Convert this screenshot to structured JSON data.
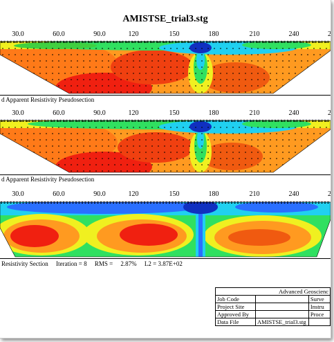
{
  "title": "AMISTSE_trial3.stg",
  "axis_ticks": [
    "30.0",
    "60.0",
    "90.0",
    "120",
    "150",
    "180",
    "210",
    "240",
    "27"
  ],
  "captions": {
    "measured": "d Apparent Resistivity Pseudosection",
    "calculated": "d Apparent Resistivity Pseudosection",
    "inverted": "Resistivity Section"
  },
  "stats": {
    "iteration": "Iteration = 8",
    "rms_label": "RMS =",
    "rms_value": "2.87%",
    "l2": "L2 =  3.87E+02"
  },
  "info_box": {
    "company": "Advanced Geoscienc",
    "rows": [
      {
        "label": "Job Code",
        "value": "",
        "right": "Surve"
      },
      {
        "label": "Project Site",
        "value": "",
        "right": "Instru"
      },
      {
        "label": "Approved By",
        "value": "",
        "right": "Proce"
      },
      {
        "label": "Data File",
        "value": "AMISTSE_trial3.stg",
        "right": ""
      }
    ]
  },
  "colors": {
    "deep_blue": "#1030c0",
    "blue": "#2a6fff",
    "cyan": "#20d0f0",
    "green": "#30e060",
    "yellow": "#f0f020",
    "orange": "#ff9a20",
    "red": "#f02010",
    "dark_red": "#c00000"
  }
}
